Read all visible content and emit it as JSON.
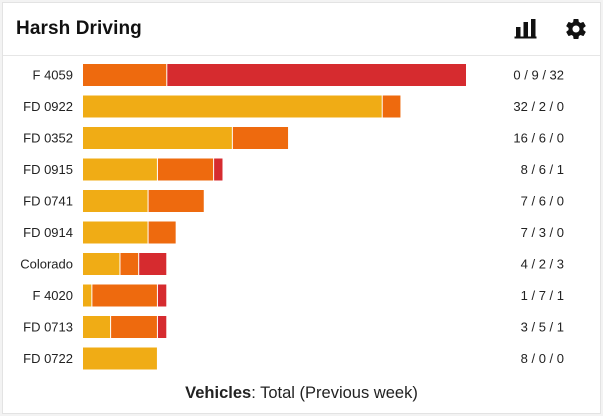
{
  "title": "Harsh Driving",
  "icons": {
    "chart": "bar-chart-icon",
    "settings": "gear-icon"
  },
  "footer": {
    "bold": "Vehicles",
    "rest": ": Total (Previous week)"
  },
  "colors": {
    "low": "#F0AC15",
    "medium": "#EE6A0E",
    "high": "#D62B2F"
  },
  "chart_data": {
    "type": "bar",
    "orientation": "horizontal",
    "stacked": true,
    "categories": [
      "F 4059",
      "FD 0922",
      "FD 0352",
      "FD 0915",
      "FD 0741",
      "FD 0914",
      "Colorado",
      "F 4020",
      "FD 0713",
      "FD 0722"
    ],
    "series": [
      {
        "color": "#F0AC15",
        "values": [
          0,
          32,
          16,
          8,
          7,
          7,
          4,
          1,
          3,
          8
        ]
      },
      {
        "color": "#EE6A0E",
        "values": [
          9,
          2,
          6,
          6,
          6,
          3,
          2,
          7,
          5,
          0
        ]
      },
      {
        "color": "#D62B2F",
        "values": [
          32,
          0,
          0,
          1,
          0,
          0,
          3,
          1,
          1,
          0
        ]
      }
    ],
    "value_labels": [
      "0 / 9 / 32",
      "32 / 2 / 0",
      "16 / 6 / 0",
      "8 / 6 / 1",
      "7 / 6 / 0",
      "7 / 3 / 0",
      "4 / 2 / 3",
      "1 / 7 / 1",
      "3 / 5 / 1",
      "8 / 0 / 0"
    ],
    "xlim": [
      0,
      41
    ],
    "grid": false,
    "legend": "none"
  }
}
